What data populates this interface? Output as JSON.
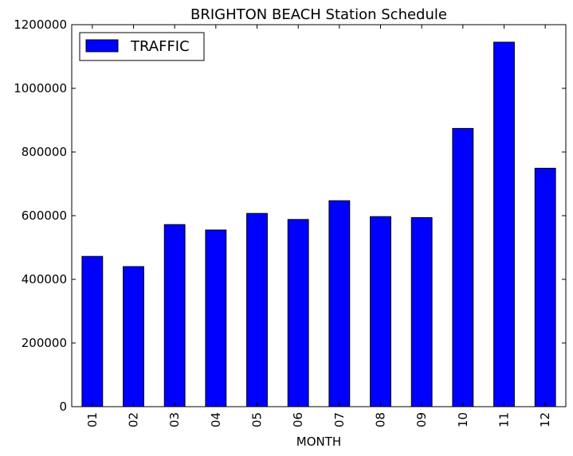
{
  "chart_data": {
    "type": "bar",
    "title": "BRIGHTON BEACH Station Schedule",
    "xlabel": "MONTH",
    "ylabel": "",
    "categories": [
      "01",
      "02",
      "03",
      "04",
      "05",
      "06",
      "07",
      "08",
      "09",
      "10",
      "11",
      "12"
    ],
    "series": [
      {
        "name": "TRAFFIC",
        "color": "#0000ff",
        "values": [
          472000,
          440000,
          572000,
          555000,
          607000,
          588000,
          647000,
          597000,
          594000,
          874000,
          1145000,
          749000
        ]
      }
    ],
    "ylim": [
      0,
      1200000
    ],
    "yticks": [
      0,
      200000,
      400000,
      600000,
      800000,
      1000000,
      1200000
    ],
    "ytick_labels": [
      "0",
      "200000",
      "400000",
      "600000",
      "800000",
      "1000000",
      "1200000"
    ],
    "grid": false,
    "legend_position": "top-left"
  }
}
